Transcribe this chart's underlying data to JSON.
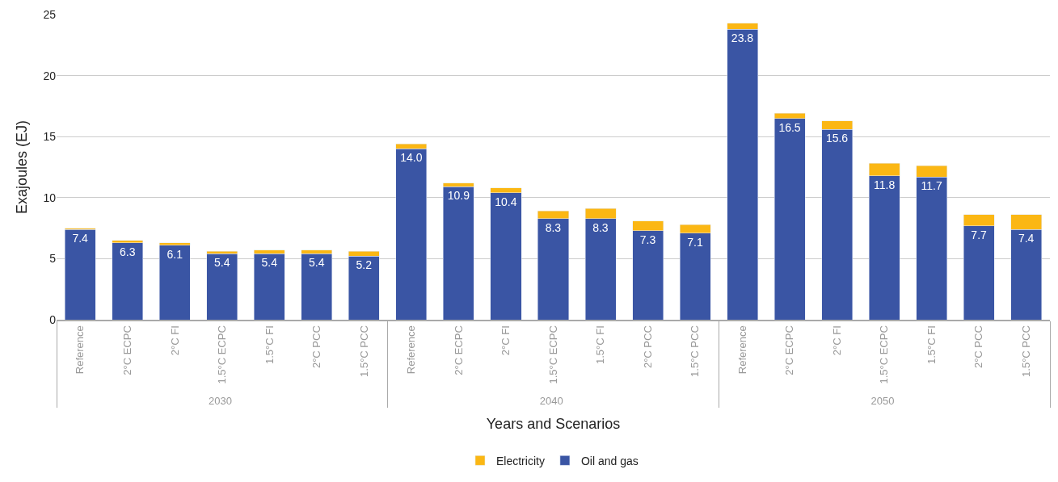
{
  "chart_data": {
    "type": "bar",
    "stacked": true,
    "xlabel": "Years and Scenarios",
    "ylabel": "Exajoules (EJ)",
    "categories": [
      "Reference",
      "2°C ECPC",
      "2°C FI",
      "1.5°C ECPC",
      "1.5°C FI",
      "2°C PCC",
      "1.5°C PCC",
      "Reference",
      "2°C ECPC",
      "2°C FI",
      "1.5°C ECPC",
      "1.5°C FI",
      "2°C PCC",
      "1.5°C PCC",
      "Reference",
      "2°C ECPC",
      "2°C FI",
      "1.5°C ECPC",
      "1.5°C FI",
      "2°C PCC",
      "1.5°C PCC"
    ],
    "annotations": [
      "2030",
      "2040",
      "2050"
    ],
    "series": [
      {
        "name": "Oil and gas",
        "color": "#3a55a4",
        "values": [
          7.4,
          6.3,
          6.1,
          5.4,
          5.4,
          5.4,
          5.2,
          14.0,
          10.9,
          10.4,
          8.3,
          8.3,
          7.3,
          7.1,
          23.8,
          16.5,
          15.6,
          11.8,
          11.7,
          7.7,
          7.4
        ],
        "value_labels": [
          "7.4",
          "6.3",
          "6.1",
          "5.4",
          "5.4",
          "5.4",
          "5.2",
          "14.0",
          "10.9",
          "10.4",
          "8.3",
          "8.3",
          "7.3",
          "7.1",
          "23.8",
          "16.5",
          "15.6",
          "11.8",
          "11.7",
          "7.7",
          "7.4"
        ]
      },
      {
        "name": "Electricity",
        "color": "#fbb714",
        "values": [
          0.1,
          0.2,
          0.2,
          0.2,
          0.3,
          0.3,
          0.4,
          0.4,
          0.3,
          0.4,
          0.6,
          0.8,
          0.8,
          0.7,
          0.5,
          0.4,
          0.7,
          1.0,
          0.9,
          0.9,
          1.2
        ]
      }
    ],
    "ylim": [
      0,
      25
    ],
    "yticks": [
      0,
      5,
      10,
      15,
      20,
      25
    ],
    "grid": "y",
    "legend": "bottom"
  }
}
